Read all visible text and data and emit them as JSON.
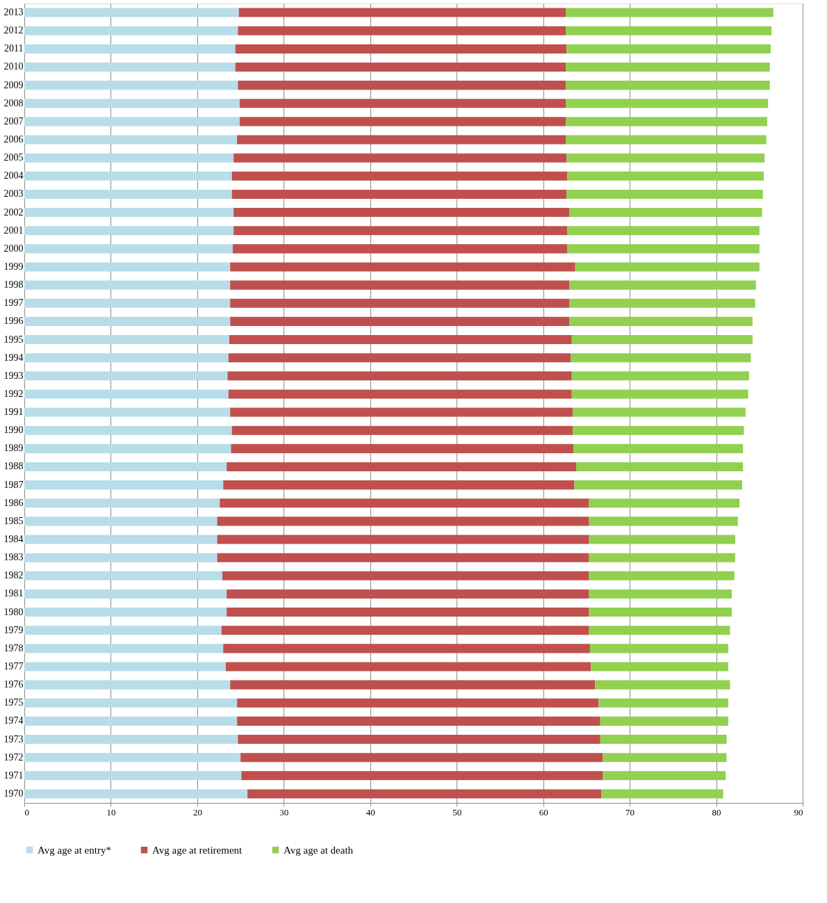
{
  "chart_data": {
    "type": "bar",
    "orientation": "horizontal",
    "stacked": true,
    "categories": [
      "2013",
      "2012",
      "2011",
      "2010",
      "2009",
      "2008",
      "2007",
      "2006",
      "2005",
      "2004",
      "2003",
      "2002",
      "2001",
      "2000",
      "1999",
      "1998",
      "1997",
      "1996",
      "1995",
      "1994",
      "1993",
      "1992",
      "1991",
      "1990",
      "1989",
      "1988",
      "1987",
      "1986",
      "1985",
      "1984",
      "1983",
      "1982",
      "1981",
      "1980",
      "1979",
      "1978",
      "1977",
      "1976",
      "1975",
      "1974",
      "1973",
      "1972",
      "1971",
      "1970"
    ],
    "series": [
      {
        "name": "Avg age at entry*",
        "color": "#b7dde8",
        "values": [
          24.8,
          24.7,
          24.4,
          24.4,
          24.7,
          24.9,
          24.9,
          24.6,
          24.2,
          24.0,
          24.0,
          24.2,
          24.2,
          24.1,
          23.8,
          23.8,
          23.8,
          23.8,
          23.7,
          23.6,
          23.5,
          23.6,
          23.8,
          24.0,
          23.9,
          23.4,
          23.0,
          22.6,
          22.3,
          22.3,
          22.3,
          22.9,
          23.4,
          23.4,
          22.8,
          23.0,
          23.3,
          23.8,
          24.6,
          24.6,
          24.7,
          25.0,
          25.1,
          25.8
        ]
      },
      {
        "name": "Avg age at retirement",
        "color": "#c0504d",
        "values": [
          37.8,
          37.9,
          38.3,
          38.2,
          37.9,
          37.7,
          37.7,
          38.0,
          38.5,
          38.8,
          38.7,
          38.8,
          38.6,
          38.7,
          39.9,
          39.2,
          39.2,
          39.2,
          39.6,
          39.6,
          39.8,
          39.7,
          39.6,
          39.4,
          39.6,
          40.4,
          40.6,
          42.7,
          43.0,
          43.0,
          43.0,
          42.4,
          41.9,
          41.9,
          42.5,
          42.4,
          42.2,
          42.2,
          41.8,
          42.0,
          41.9,
          41.9,
          41.8,
          40.9
        ]
      },
      {
        "name": "Avg age at death",
        "color": "#92d050",
        "values": [
          24.0,
          23.8,
          23.6,
          23.6,
          23.6,
          23.4,
          23.3,
          23.2,
          22.9,
          22.7,
          22.7,
          22.3,
          22.2,
          22.2,
          21.3,
          21.6,
          21.5,
          21.2,
          20.9,
          20.8,
          20.5,
          20.4,
          20.0,
          19.8,
          19.6,
          19.3,
          19.4,
          17.4,
          17.2,
          16.9,
          16.9,
          16.8,
          16.5,
          16.5,
          16.3,
          16.0,
          15.9,
          15.6,
          15.0,
          14.8,
          14.6,
          14.3,
          14.2,
          14.1
        ]
      }
    ],
    "xlim": [
      0,
      90
    ],
    "xticks": [
      0,
      10,
      20,
      30,
      40,
      50,
      60,
      70,
      80,
      90
    ],
    "grid": "x",
    "legend": "bottom"
  }
}
